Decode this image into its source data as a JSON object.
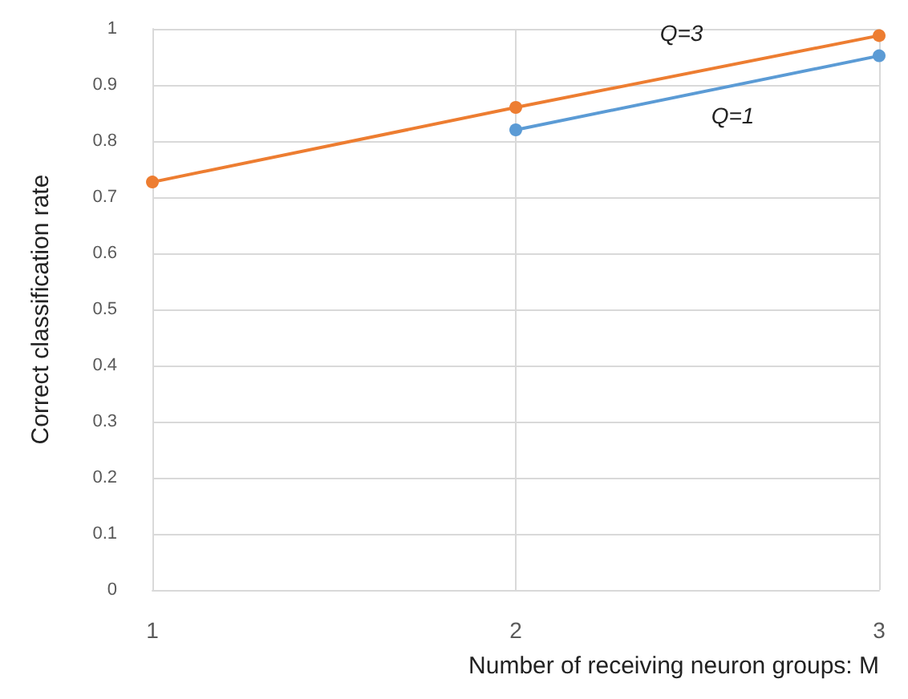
{
  "chart_data": {
    "type": "line",
    "xlabel": "Number of receiving neuron groups: M",
    "ylabel": "Correct classification rate",
    "x": [
      1,
      2,
      3
    ],
    "series": [
      {
        "name": "Q=3",
        "color": "#ed7d31",
        "values": [
          0.727,
          0.86,
          0.988
        ]
      },
      {
        "name": "Q=1",
        "color": "#5b9bd5",
        "values": [
          null,
          0.82,
          0.952
        ]
      }
    ],
    "xlim": [
      1,
      3
    ],
    "xticks": [
      1,
      2,
      3
    ],
    "ylim": [
      0,
      1
    ],
    "yticks": [
      0,
      0.1,
      0.2,
      0.3,
      0.4,
      0.5,
      0.6,
      0.7,
      0.8,
      0.9,
      1
    ],
    "grid": true,
    "marker": "circle",
    "line_style": "solid"
  }
}
